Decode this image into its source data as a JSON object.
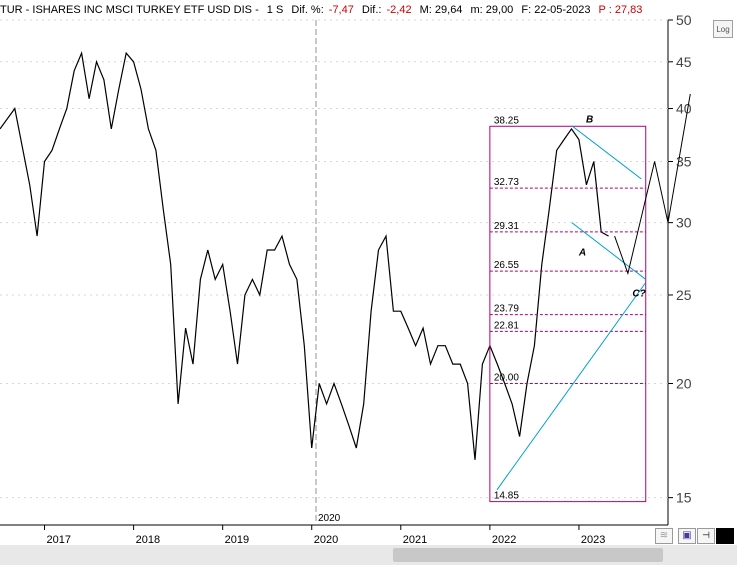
{
  "header": {
    "symbol": "TUR - ISHARES INC MSCI TURKEY ETF USD DIS -",
    "period": "1 S",
    "dif_pct_label": "Dif. %:",
    "dif_pct_value": "-7,47",
    "dif_label": "Dif.:",
    "dif_value": "-2,42",
    "max_label": "M: 29,64",
    "min_label": "m: 29,00",
    "date_label": "F: 22-05-2023",
    "price_label": "P : 27,83"
  },
  "toolbar": {
    "log_label": "Log"
  },
  "colors": {
    "price": "#000000",
    "magenta": "#b0007a",
    "cyan": "#00a0d0",
    "neg": "#d00000"
  },
  "chart_data": {
    "type": "line",
    "title": "",
    "y_scale": "log",
    "ylim": [
      14,
      50
    ],
    "y_ticks": [
      15,
      20,
      25,
      30,
      35,
      40,
      45,
      50
    ],
    "x_range": [
      "2016-07",
      "2023-12"
    ],
    "x_ticks": [
      "2017",
      "2018",
      "2019",
      "2020",
      "2021",
      "2022",
      "2023"
    ],
    "x_divider_label": "2020",
    "series": [
      {
        "x": [
          "2016-07",
          "2016-09",
          "2016-11",
          "2016-12",
          "2017-01",
          "2017-02",
          "2017-03",
          "2017-04",
          "2017-05",
          "2017-06",
          "2017-07",
          "2017-08",
          "2017-09",
          "2017-10",
          "2017-11",
          "2017-12",
          "2018-01",
          "2018-02",
          "2018-03",
          "2018-04",
          "2018-05",
          "2018-06",
          "2018-07",
          "2018-08",
          "2018-09",
          "2018-10",
          "2018-11",
          "2018-12",
          "2019-01",
          "2019-02",
          "2019-03",
          "2019-04",
          "2019-05",
          "2019-06",
          "2019-07",
          "2019-08",
          "2019-09",
          "2019-10",
          "2019-11",
          "2019-12",
          "2020-01",
          "2020-02",
          "2020-03",
          "2020-04",
          "2020-05",
          "2020-06",
          "2020-07",
          "2020-08",
          "2020-09",
          "2020-10",
          "2020-11",
          "2020-12",
          "2021-01",
          "2021-02",
          "2021-03",
          "2021-04",
          "2021-05",
          "2021-06",
          "2021-07",
          "2021-08",
          "2021-09",
          "2021-10",
          "2021-11",
          "2021-12",
          "2022-01",
          "2022-02",
          "2022-03",
          "2022-04",
          "2022-05",
          "2022-06",
          "2022-07",
          "2022-08",
          "2022-09",
          "2022-10",
          "2022-11",
          "2022-12",
          "2023-01",
          "2023-02",
          "2023-03",
          "2023-04",
          "2023-05"
        ],
        "values": [
          38,
          40,
          33,
          29,
          35,
          36,
          38,
          40,
          44,
          46,
          41,
          45,
          43,
          38,
          42,
          46,
          45,
          42,
          38,
          36,
          31,
          27,
          19,
          23,
          21,
          26,
          28,
          26,
          27,
          24,
          21,
          25,
          26,
          25,
          28,
          28,
          29,
          27,
          26,
          22,
          17,
          20,
          19,
          20,
          19,
          18,
          17,
          19,
          24,
          28,
          29,
          24,
          24,
          23,
          22,
          23,
          21,
          22,
          22,
          21,
          21,
          20,
          16.5,
          21,
          22,
          21,
          20,
          19,
          17.5,
          20,
          22,
          27,
          31,
          36,
          37,
          38,
          37,
          33,
          35,
          29.3,
          29
        ]
      }
    ],
    "levels": [
      "38.25",
      "32.73",
      "29.31",
      "26.55",
      "23.79",
      "22.81",
      "20.00",
      "14.85"
    ],
    "wave_labels": [
      "B",
      "A",
      "C?"
    ]
  }
}
